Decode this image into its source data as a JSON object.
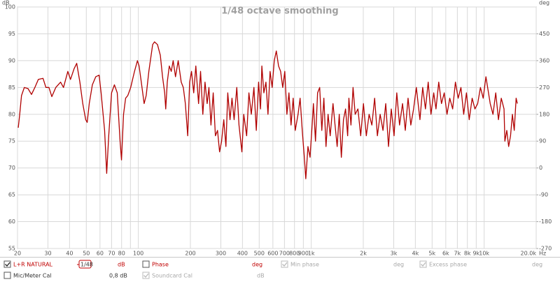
{
  "chart_data": {
    "type": "line",
    "title": "1/48 octave smoothing",
    "xlabel": "Hz",
    "ylabel": "dB",
    "y2label": "deg",
    "log_x": true,
    "grid": true,
    "xlim": [
      20,
      20000
    ],
    "xticks": [
      20,
      30,
      40,
      50,
      60,
      70,
      80,
      100,
      200,
      300,
      400,
      500,
      600,
      700,
      800,
      900,
      {
        "value": 1000,
        "label": "1k"
      },
      {
        "value": 2000,
        "label": "2k"
      },
      {
        "value": 3000,
        "label": "3k"
      },
      {
        "value": 4000,
        "label": "4k"
      },
      {
        "value": 5000,
        "label": "5k"
      },
      {
        "value": 6000,
        "label": "6k"
      },
      {
        "value": 7000,
        "label": "7k"
      },
      {
        "value": 8000,
        "label": "8k"
      },
      {
        "value": 9000,
        "label": "9k"
      },
      {
        "value": 10000,
        "label": "10k"
      },
      {
        "value": 20000,
        "label": "20.0k"
      }
    ],
    "xminor_ticks": [
      90
    ],
    "ylim": [
      55,
      100
    ],
    "yticks": [
      55,
      60,
      65,
      70,
      75,
      80,
      85,
      90,
      95,
      100
    ],
    "y2lim": [
      -270,
      540
    ],
    "y2ticks": [
      -270,
      -180,
      -90,
      0,
      90,
      180,
      270,
      360,
      450
    ],
    "x": [
      20.2,
      20.6,
      21.1,
      21.9,
      23,
      24.1,
      25.2,
      26.4,
      28.1,
      29.2,
      30.4,
      31.6,
      33.3,
      35.5,
      36.9,
      39.1,
      40.5,
      42.5,
      44,
      45.9,
      47.7,
      49.6,
      50.6,
      52,
      54.2,
      56.7,
      59.3,
      60.9,
      63.8,
      65.6,
      67.4,
      70,
      72.7,
      75.5,
      78.4,
      79.9,
      82.1,
      84.4,
      86.9,
      90.3,
      95,
      98.8,
      101,
      104,
      108,
      111,
      115,
      121,
      124,
      129,
      134,
      138,
      142,
      144,
      147,
      151,
      155,
      159,
      164,
      170,
      177,
      182,
      187,
      193,
      198,
      203,
      209,
      215,
      223,
      229,
      236,
      243,
      250,
      256,
      263,
      271,
      279,
      287,
      295,
      303,
      312,
      321,
      329,
      339,
      348,
      358,
      371,
      382,
      397,
      407,
      423,
      436,
      450,
      466,
      481,
      496,
      509,
      518,
      532,
      547,
      562,
      578,
      594,
      611,
      628,
      647,
      665,
      684,
      703,
      723,
      743,
      764,
      786,
      808,
      839,
      862,
      887,
      912,
      930,
      957,
      984,
      1012,
      1029,
      1058,
      1088,
      1119,
      1151,
      1183,
      1217,
      1251,
      1287,
      1336,
      1373,
      1412,
      1452,
      1493,
      1536,
      1579,
      1624,
      1651,
      1697,
      1745,
      1795,
      1862,
      1932,
      2004,
      2082,
      2161,
      2242,
      2326,
      2413,
      2503,
      2600,
      2697,
      2798,
      2903,
      3012,
      3124,
      3241,
      3373,
      3499,
      3630,
      3766,
      3907,
      4053,
      4252,
      4411,
      4576,
      4747,
      4925,
      5109,
      5265,
      5462,
      5666,
      5878,
      6098,
      6326,
      6575,
      6821,
      7076,
      7341,
      7616,
      7901,
      8196,
      8524,
      8843,
      9174,
      9517,
      9873,
      10240,
      10840,
      11250,
      11670,
      12100,
      12560,
      13030,
      13180,
      13520,
      13860,
      14210,
      14570,
      14930,
      15310,
      15560
    ],
    "series": [
      {
        "name": "L+R NATURAL",
        "color": "#b00000",
        "values": [
          77.5,
          80,
          83.5,
          85,
          84.8,
          83.7,
          85,
          86.5,
          86.7,
          85,
          85,
          83.3,
          85,
          86,
          85,
          88,
          86.5,
          88.5,
          89.5,
          86,
          82,
          79,
          78.5,
          82,
          85.5,
          87,
          87.3,
          84,
          77,
          69,
          76,
          84,
          85.5,
          84,
          75,
          71.5,
          80,
          83,
          83.5,
          85,
          88,
          90,
          89,
          86,
          82,
          83.5,
          88,
          93,
          93.5,
          93,
          91,
          87,
          84,
          81,
          86,
          89,
          88,
          90,
          87,
          90,
          86,
          85,
          82,
          76,
          86,
          88,
          84,
          89,
          82,
          88,
          80,
          86,
          82,
          85,
          78,
          84,
          76,
          77,
          73,
          75,
          79,
          74,
          84,
          79,
          83,
          79,
          85,
          78,
          73,
          80,
          76,
          84,
          80,
          85,
          77,
          86,
          81,
          89,
          84,
          86,
          80,
          88,
          85,
          90,
          91.8,
          89,
          88,
          85,
          88,
          80,
          84,
          78,
          83,
          77,
          80,
          83,
          77,
          72,
          68,
          74,
          72,
          78,
          82,
          75,
          84,
          85,
          77,
          83,
          74,
          80,
          76,
          82,
          78,
          74,
          80,
          72,
          79,
          81,
          76,
          83,
          78,
          85,
          80,
          81,
          76,
          82,
          76,
          80,
          78,
          83,
          76,
          80,
          77,
          82,
          74,
          81,
          76,
          84,
          78,
          82,
          77,
          83,
          78,
          81,
          85,
          79,
          85,
          81,
          86,
          80,
          84,
          81,
          86,
          82,
          84,
          80,
          83,
          81,
          86,
          83,
          85,
          80,
          84,
          79,
          83,
          81,
          82,
          85,
          83,
          87,
          82,
          80,
          84,
          79,
          83,
          81,
          75,
          77,
          74,
          76,
          80,
          77,
          83,
          82
        ]
      }
    ]
  },
  "panel": {
    "smoothing": "1/48",
    "trace_unit": "dB",
    "phase": "Phase",
    "phase_unit": "deg",
    "min_phase": "Min phase",
    "min_phase_unit": "deg",
    "excess_phase": "Excess phase",
    "excess_phase_unit": "deg",
    "mic_cal": "Mic/Meter Cal",
    "mic_cal_value": "0,8 dB",
    "soundcard_cal": "Soundcard Cal",
    "soundcard_cal_unit": "dB"
  }
}
